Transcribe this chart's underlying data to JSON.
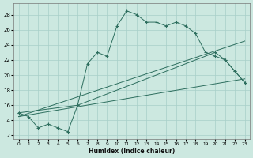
{
  "xlabel": "Humidex (Indice chaleur)",
  "background_color": "#cce8e0",
  "line_color": "#2d6e5e",
  "grid_color": "#a8cfc8",
  "xlim": [
    -0.5,
    23.5
  ],
  "ylim": [
    11.5,
    29.5
  ],
  "x_ticks": [
    0,
    1,
    2,
    3,
    4,
    5,
    6,
    7,
    8,
    9,
    10,
    11,
    12,
    13,
    14,
    15,
    16,
    17,
    18,
    19,
    20,
    21,
    22,
    23
  ],
  "y_ticks": [
    12,
    14,
    16,
    18,
    20,
    22,
    24,
    26,
    28
  ],
  "main_x": [
    0,
    1,
    2,
    3,
    4,
    5,
    6,
    7,
    8,
    9,
    10,
    11,
    12,
    13,
    14,
    15,
    16,
    17,
    18,
    19,
    20,
    21,
    22,
    23
  ],
  "main_y": [
    15,
    14.5,
    13,
    13.5,
    13,
    12.5,
    16,
    21.5,
    23,
    22.5,
    26.5,
    28.5,
    28,
    27,
    27,
    26.5,
    27,
    26.5,
    25.5,
    23,
    22.5,
    22,
    20.5,
    19
  ],
  "line2_x": [
    0,
    6,
    20,
    21,
    22,
    23
  ],
  "line2_y": [
    15,
    16,
    23,
    22,
    20.5,
    19
  ],
  "line3_x": [
    0,
    23
  ],
  "line3_y": [
    14.5,
    19.5
  ],
  "line4_x": [
    0,
    23
  ],
  "line4_y": [
    14.5,
    24.5
  ]
}
